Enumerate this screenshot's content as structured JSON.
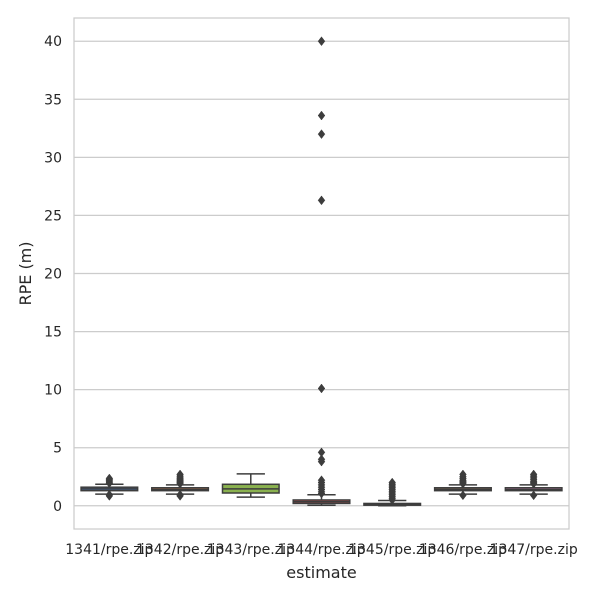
{
  "chart_data": {
    "type": "box",
    "xlabel": "estimate",
    "ylabel": "RPE (m)",
    "ylim": [
      -2,
      42
    ],
    "yticks": [
      0,
      5,
      10,
      15,
      20,
      25,
      30,
      35,
      40
    ],
    "grid": "horizontal",
    "categories": [
      "1341/rpe.zip",
      "1342/rpe.zip",
      "1343/rpe.zip",
      "1344/rpe.zip",
      "1345/rpe.zip",
      "1346/rpe.zip",
      "1347/rpe.zip"
    ],
    "boxes": [
      {
        "category": "1341/rpe.zip",
        "color": "#4c72b0",
        "whisker_low": 1.0,
        "q1": 1.3,
        "median": 1.45,
        "q3": 1.6,
        "whisker_high": 1.85,
        "outliers": [
          0.85,
          0.95,
          1.95,
          2.05,
          2.15,
          2.25,
          2.35
        ]
      },
      {
        "category": "1342/rpe.zip",
        "color": "#dd8452",
        "whisker_low": 1.0,
        "q1": 1.3,
        "median": 1.4,
        "q3": 1.55,
        "whisker_high": 1.8,
        "outliers": [
          0.85,
          0.95,
          1.9,
          2.0,
          2.1,
          2.2,
          2.3,
          2.4,
          2.55,
          2.7
        ]
      },
      {
        "category": "1343/rpe.zip",
        "color": "#8ab14f",
        "whisker_low": 0.75,
        "q1": 1.1,
        "median": 1.45,
        "q3": 1.85,
        "whisker_high": 2.75,
        "outliers": []
      },
      {
        "category": "1344/rpe.zip",
        "color": "#c44e52",
        "whisker_low": 0.05,
        "q1": 0.2,
        "median": 0.35,
        "q3": 0.5,
        "whisker_high": 0.95,
        "outliers": [
          1.05,
          1.2,
          1.4,
          1.6,
          1.8,
          2.0,
          2.2,
          3.8,
          4.0,
          4.6,
          10.1,
          26.3,
          32.0,
          33.6,
          40.0
        ]
      },
      {
        "category": "1345/rpe.zip",
        "color": "#8172b3",
        "whisker_low": 0.0,
        "q1": 0.05,
        "median": 0.1,
        "q3": 0.2,
        "whisker_high": 0.45,
        "outliers": [
          0.5,
          0.65,
          0.8,
          0.95,
          1.1,
          1.25,
          1.4,
          1.55,
          1.7,
          1.85,
          2.0
        ]
      },
      {
        "category": "1346/rpe.zip",
        "color": "#937860",
        "whisker_low": 1.0,
        "q1": 1.3,
        "median": 1.4,
        "q3": 1.55,
        "whisker_high": 1.8,
        "outliers": [
          0.9,
          1.9,
          2.0,
          2.1,
          2.2,
          2.35,
          2.5,
          2.7
        ]
      },
      {
        "category": "1347/rpe.zip",
        "color": "#da8bc3",
        "whisker_low": 1.0,
        "q1": 1.3,
        "median": 1.4,
        "q3": 1.55,
        "whisker_high": 1.8,
        "outliers": [
          0.9,
          1.9,
          2.0,
          2.1,
          2.25,
          2.4,
          2.55,
          2.7
        ]
      }
    ],
    "line_color": "#3d3d3d",
    "grid_color": "#cccccc",
    "frame_color": "#cccccc"
  }
}
